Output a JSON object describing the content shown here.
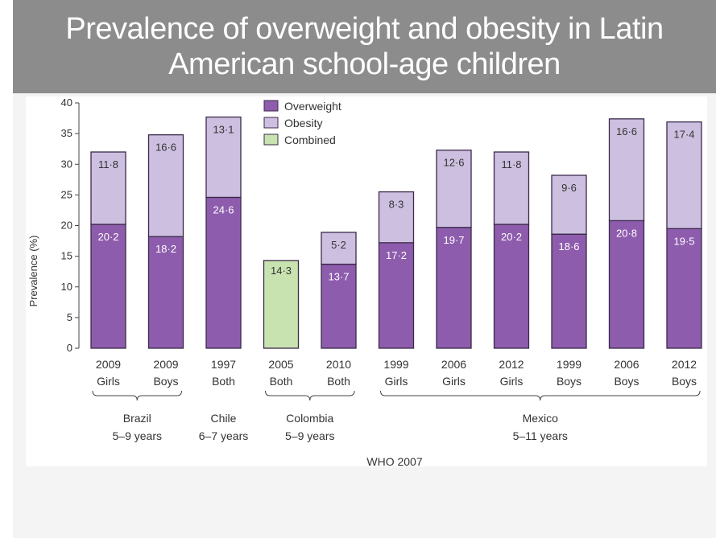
{
  "slide": {
    "title_line1": "Prevalence of overweight and obesity in Latin",
    "title_line2": "American school-age children"
  },
  "colors": {
    "title_bar": "#8c8c8c",
    "overweight": "#8e5cad",
    "obesity": "#cdbfe0",
    "combined": "#c8e3b0",
    "bar_outline": "#3a2a4a"
  },
  "chart_data": {
    "type": "bar",
    "stacked": true,
    "ylabel": "Prevalence (%)",
    "xlabel": "WHO 2007",
    "ylim": [
      0,
      40
    ],
    "yticks": [
      0,
      5,
      10,
      15,
      20,
      25,
      30,
      35,
      40
    ],
    "legend": [
      "Overweight",
      "Obesity",
      "Combined"
    ],
    "legend_position": "top-center",
    "bars": [
      {
        "year": "2009",
        "group": "Girls",
        "overweight": 20.2,
        "obesity": 11.8,
        "combined": null,
        "overweight_label": "20·2",
        "obesity_label": "11·8"
      },
      {
        "year": "2009",
        "group": "Boys",
        "overweight": 18.2,
        "obesity": 16.6,
        "combined": null,
        "overweight_label": "18·2",
        "obesity_label": "16·6"
      },
      {
        "year": "1997",
        "group": "Both",
        "overweight": 24.6,
        "obesity": 13.1,
        "combined": null,
        "overweight_label": "24·6",
        "obesity_label": "13·1"
      },
      {
        "year": "2005",
        "group": "Both",
        "overweight": null,
        "obesity": null,
        "combined": 14.3,
        "combined_label": "14·3"
      },
      {
        "year": "2010",
        "group": "Both",
        "overweight": 13.7,
        "obesity": 5.2,
        "combined": null,
        "overweight_label": "13·7",
        "obesity_label": "5·2"
      },
      {
        "year": "1999",
        "group": "Girls",
        "overweight": 17.2,
        "obesity": 8.3,
        "combined": null,
        "overweight_label": "17·2",
        "obesity_label": "8·3"
      },
      {
        "year": "2006",
        "group": "Girls",
        "overweight": 19.7,
        "obesity": 12.6,
        "combined": null,
        "overweight_label": "19·7",
        "obesity_label": "12·6"
      },
      {
        "year": "2012",
        "group": "Girls",
        "overweight": 20.2,
        "obesity": 11.8,
        "combined": null,
        "overweight_label": "20·2",
        "obesity_label": "11·8"
      },
      {
        "year": "1999",
        "group": "Boys",
        "overweight": 18.6,
        "obesity": 9.6,
        "combined": null,
        "overweight_label": "18·6",
        "obesity_label": "9·6"
      },
      {
        "year": "2006",
        "group": "Boys",
        "overweight": 20.8,
        "obesity": 16.6,
        "combined": null,
        "overweight_label": "20·8",
        "obesity_label": "16·6"
      },
      {
        "year": "2012",
        "group": "Boys",
        "overweight": 19.5,
        "obesity": 17.4,
        "combined": null,
        "overweight_label": "19·5",
        "obesity_label": "17·4"
      }
    ],
    "country_groups": [
      {
        "country": "Brazil",
        "age": "5–9 years",
        "from": 0,
        "to": 1
      },
      {
        "country": "Chile",
        "age": "6–7 years",
        "from": 2,
        "to": 2
      },
      {
        "country": "Colombia",
        "age": "5–9 years",
        "from": 3,
        "to": 4
      },
      {
        "country": "Mexico",
        "age": "5–11 years",
        "from": 5,
        "to": 10
      }
    ]
  }
}
